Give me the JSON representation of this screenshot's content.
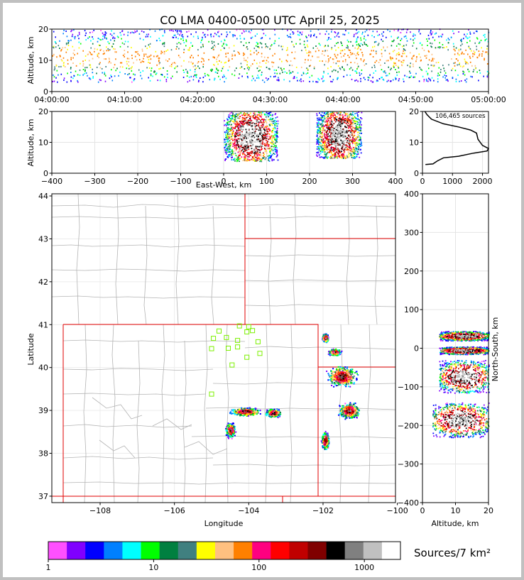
{
  "chart_data": {
    "type": "heatmap",
    "title": "CO LMA 0400-0500 UTC April 25, 2025",
    "source_count_label": "106,465 sources",
    "colorbar_label": "Sources/7 km²",
    "colorbar_ticks": [
      "1",
      "10",
      "100",
      "1000"
    ],
    "colormap": [
      "#ff50ff",
      "#8000ff",
      "#0000ff",
      "#0080ff",
      "#00ffff",
      "#00ff00",
      "#008040",
      "#408080",
      "#ffff00",
      "#ffc080",
      "#ff8000",
      "#ff0080",
      "#ff0000",
      "#c00000",
      "#800000",
      "#000000",
      "#808080",
      "#c0c0c0",
      "#ffffff"
    ],
    "time_height": {
      "ylabel": "Altitude, km",
      "xticks": [
        "04:00:00",
        "04:10:00",
        "04:20:00",
        "04:30:00",
        "04:40:00",
        "04:50:00",
        "05:00:00"
      ],
      "yticks": [
        "0",
        "10",
        "20"
      ],
      "ylim": [
        0,
        20
      ],
      "x_range": [
        "04:00:00",
        "05:00:00"
      ]
    },
    "ew_height": {
      "xlabel": "East-West, km",
      "ylabel": "Altitude, km",
      "xlim": [
        -400,
        400
      ],
      "ylim": [
        0,
        20
      ],
      "xticks": [
        "−400",
        "−300",
        "−200",
        "−100",
        "0",
        "100",
        "200",
        "300",
        "400"
      ],
      "yticks": [
        "0",
        "10",
        "20"
      ],
      "clusters": [
        {
          "x": [
            0,
            125
          ],
          "z": [
            4,
            20
          ]
        },
        {
          "x": [
            215,
            320
          ],
          "z": [
            5,
            20
          ]
        }
      ]
    },
    "altitude_histogram": {
      "xlim": [
        0,
        2200
      ],
      "ylim": [
        0,
        20
      ],
      "xticks": [
        "0",
        "1000",
        "2000"
      ],
      "yticks": [
        "0",
        "10",
        "20"
      ],
      "profile": [
        [
          100,
          2.8
        ],
        [
          350,
          3
        ],
        [
          500,
          4
        ],
        [
          700,
          5
        ],
        [
          1200,
          5.5
        ],
        [
          1700,
          6.5
        ],
        [
          2150,
          7.2
        ],
        [
          2200,
          8
        ],
        [
          2000,
          9
        ],
        [
          1850,
          11
        ],
        [
          1800,
          13
        ],
        [
          1600,
          14
        ],
        [
          1200,
          15
        ],
        [
          700,
          16
        ],
        [
          300,
          17.5
        ],
        [
          150,
          19
        ],
        [
          80,
          20
        ]
      ]
    },
    "plan_view": {
      "xlabel": "Longitude",
      "ylabel": "Latitude",
      "xlim": [
        -109.3,
        -100.05
      ],
      "ylim": [
        36.85,
        44.05
      ],
      "xticks": [
        "−108",
        "−106",
        "−104",
        "−102",
        "−100"
      ],
      "yticks": [
        "37",
        "38",
        "39",
        "40",
        "41",
        "42",
        "43",
        "44"
      ],
      "stations": [
        {
          "lon": -105.0,
          "lat": 39.38
        },
        {
          "lon": -104.45,
          "lat": 40.06
        },
        {
          "lon": -104.05,
          "lat": 40.24
        },
        {
          "lon": -103.7,
          "lat": 40.33
        },
        {
          "lon": -105.0,
          "lat": 40.44
        },
        {
          "lon": -104.55,
          "lat": 40.45
        },
        {
          "lon": -104.3,
          "lat": 40.48
        },
        {
          "lon": -103.75,
          "lat": 40.6
        },
        {
          "lon": -104.3,
          "lat": 40.63
        },
        {
          "lon": -104.95,
          "lat": 40.68
        },
        {
          "lon": -104.6,
          "lat": 40.7
        },
        {
          "lon": -104.05,
          "lat": 40.83
        },
        {
          "lon": -104.8,
          "lat": 40.85
        },
        {
          "lon": -103.9,
          "lat": 40.86
        },
        {
          "lon": -104.0,
          "lat": 40.95
        },
        {
          "lon": -104.25,
          "lat": 40.97
        }
      ],
      "clusters": [
        {
          "lon": -104.5,
          "lat": 38.55,
          "lon_r": 0.15,
          "lat_r": 0.2
        },
        {
          "lon": -104.1,
          "lat": 38.98,
          "lon_r": 0.5,
          "lat_r": 0.12
        },
        {
          "lon": -103.35,
          "lat": 38.95,
          "lon_r": 0.25,
          "lat_r": 0.12
        },
        {
          "lon": -101.5,
          "lat": 39.8,
          "lon_r": 0.5,
          "lat_r": 0.3
        },
        {
          "lon": -101.3,
          "lat": 39.0,
          "lon_r": 0.35,
          "lat_r": 0.22
        },
        {
          "lon": -101.7,
          "lat": 40.37,
          "lon_r": 0.2,
          "lat_r": 0.1
        },
        {
          "lon": -101.95,
          "lat": 40.7,
          "lon_r": 0.1,
          "lat_r": 0.12
        },
        {
          "lon": -101.95,
          "lat": 38.3,
          "lon_r": 0.12,
          "lat_r": 0.25
        }
      ]
    },
    "ns_height": {
      "xlabel": "Altitude, km",
      "ylabel": "North-South, km",
      "xlim": [
        0,
        20
      ],
      "ylim": [
        -400,
        400
      ],
      "xticks": [
        "0",
        "10",
        "20"
      ],
      "yticks": [
        "−400",
        "−300",
        "−200",
        "−100",
        "0",
        "100",
        "200",
        "300",
        "400"
      ],
      "clusters": [
        {
          "ns": [
            20,
            45
          ],
          "z": [
            5,
            20
          ]
        },
        {
          "ns": [
            -15,
            5
          ],
          "z": [
            5,
            20
          ]
        },
        {
          "ns": [
            -115,
            -30
          ],
          "z": [
            5,
            20
          ]
        },
        {
          "ns": [
            -230,
            -140
          ],
          "z": [
            3,
            20
          ]
        }
      ]
    }
  }
}
